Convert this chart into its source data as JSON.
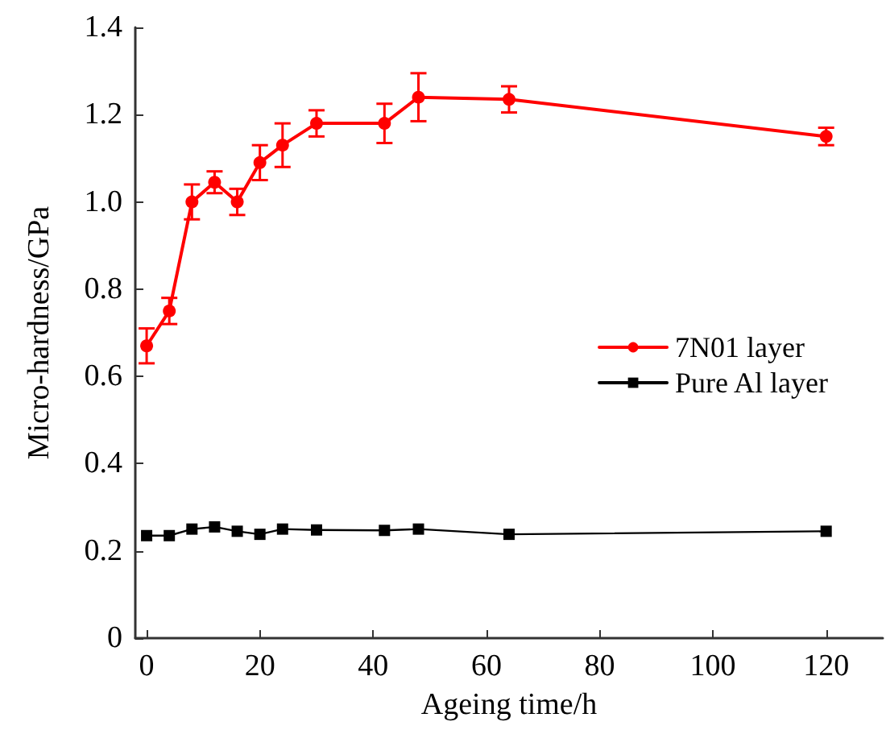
{
  "chart_data": {
    "type": "line",
    "xlabel": "Ageing time/h",
    "ylabel": "Micro-hardness/GPa",
    "x": [
      0,
      4,
      8,
      12,
      16,
      20,
      24,
      30,
      42,
      48,
      64,
      120
    ],
    "series": [
      {
        "name": "7N01 layer",
        "color": "#ff0000",
        "marker": "circle",
        "values": [
          0.67,
          0.75,
          1.0,
          1.045,
          1.0,
          1.09,
          1.13,
          1.18,
          1.18,
          1.24,
          1.235,
          1.15
        ],
        "errors": [
          0.04,
          0.03,
          0.04,
          0.025,
          0.03,
          0.04,
          0.05,
          0.03,
          0.045,
          0.055,
          0.03,
          0.02
        ]
      },
      {
        "name": "Pure Al layer",
        "color": "#000000",
        "marker": "square",
        "values": [
          0.235,
          0.235,
          0.25,
          0.255,
          0.245,
          0.238,
          0.25,
          0.248,
          0.247,
          0.25,
          0.238,
          0.245
        ]
      }
    ],
    "xlim": [
      -2,
      130
    ],
    "xticks": [
      0,
      20,
      40,
      60,
      80,
      100,
      120
    ],
    "ylim": [
      0,
      1.4
    ],
    "yticks": [
      0,
      0.2,
      0.4,
      0.6,
      0.8,
      {
        "value": 1,
        "label": "1.0"
      },
      1.2,
      1.4
    ],
    "grid": false,
    "legend": "right",
    "line_style": "solid"
  }
}
